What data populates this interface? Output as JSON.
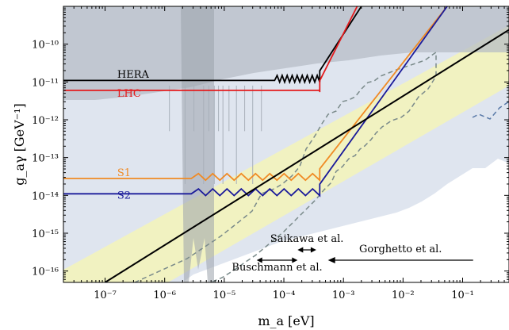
{
  "chart_data": {
    "type": "line",
    "xlabel": "m_a [eV]",
    "ylabel": "g_aγ [GeV⁻¹]",
    "x_scale": "log",
    "y_scale": "log",
    "xlim": [
      2e-08,
      0.6
    ],
    "ylim": [
      5e-17,
      1e-09
    ],
    "x_tick_labels": [
      "10⁻⁷",
      "10⁻⁶",
      "10⁻⁵",
      "10⁻⁴",
      "10⁻³",
      "10⁻²",
      "10⁻¹"
    ],
    "x_tick_values": [
      1e-07,
      1e-06,
      1e-05,
      0.0001,
      0.001,
      0.01,
      0.1
    ],
    "y_tick_labels": [
      "10⁻¹⁰",
      "10⁻¹¹",
      "10⁻¹²",
      "10⁻¹³",
      "10⁻¹⁴",
      "10⁻¹⁵",
      "10⁻¹⁶"
    ],
    "y_tick_values": [
      1e-10,
      1e-11,
      1e-12,
      1e-13,
      1e-14,
      1e-15,
      1e-16
    ],
    "colors": {
      "HERA": "#000000",
      "LHC": "#e41a1c",
      "S1": "#f08a24",
      "S2": "#1a1a9a",
      "qcd_band": "#f5f5b8",
      "excluded_dark": "#b4bac4",
      "excluded_light": "#dfe5ef",
      "dashed": "#7a8a8a"
    },
    "series": [
      {
        "name": "HERA",
        "plateau": 1.1e-11,
        "rise_start": 7e-05,
        "end": [
          0.002,
          1e-09
        ]
      },
      {
        "name": "LHC",
        "plateau": 6e-12,
        "rise_start": 0.0004,
        "end": [
          0.0017,
          1e-09
        ]
      },
      {
        "name": "S1",
        "plateau": 2.8e-14,
        "rise_start": 2.8e-06,
        "end": [
          0.055,
          1e-09
        ]
      },
      {
        "name": "S2",
        "plateau": 1.1e-14,
        "rise_start": 2.8e-06,
        "end": [
          0.055,
          1e-09
        ]
      }
    ],
    "qcd_line": {
      "points": [
        [
          1e-07,
          5e-17
        ],
        [
          0.6,
          2.4e-10
        ]
      ]
    },
    "annotations": [
      {
        "text": "Saikawa et al.",
        "x_range": [
          0.00017,
          0.00035
        ]
      },
      {
        "text": "Buschmann et al.",
        "x_range": [
          3.5e-05,
          0.00017
        ]
      },
      {
        "text": "Gorghetto et al.",
        "x_range": [
          0.00055,
          0.15
        ]
      }
    ]
  }
}
